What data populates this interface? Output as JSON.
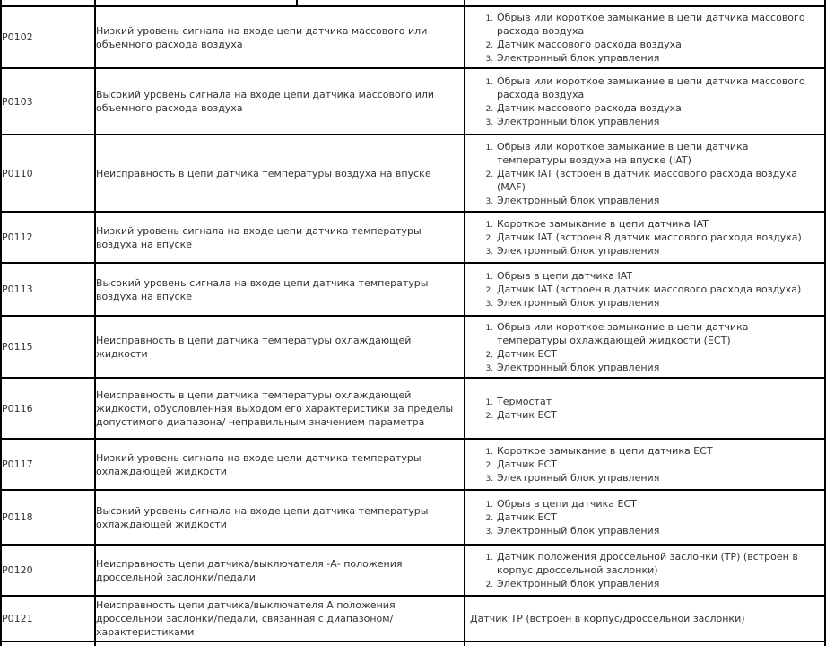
{
  "page": {
    "background": "#ffffff",
    "border_color": "#000000",
    "text_color": "#333333"
  },
  "table": {
    "column_names": [
      "dtc-code",
      "description",
      "possible-causes"
    ],
    "rows": [
      {
        "code": "P0102",
        "description": "Низкий уровень сигнала на входе цепи датчика массового или объемного расхода воздуха",
        "causes": [
          "Обрыв или короткое замыкание в цепи датчика массового расхода воздуха",
          "Датчик массового расхода воздуха",
          "Электронный блок управления"
        ]
      },
      {
        "code": "P0103",
        "description": "Высокий уровень сигнала на входе цепи датчика массового или объемного расхода воздуха",
        "causes": [
          "Обрыв или короткое замыкание в цепи датчика массового расхода воздуха",
          "Датчик массового расхода воздуха",
          "Электронный блок управления"
        ]
      },
      {
        "code": "P0110",
        "description": "Неисправность в цепи датчика температуры воздуха на впуске",
        "causes": [
          "Обрыв или короткое замыкание в цепи датчика температуры воздуха на впуске (IAT)",
          "Датчик IAT (встроен в датчик массового расхода воздуха (MAF)",
          "Электронный блок управления"
        ]
      },
      {
        "code": "P0112",
        "description": "Низкий уровень сигнала на входе цепи датчика температуры воздуха на впуске",
        "causes": [
          "Короткое замыкание в цепи датчика IAT",
          "Датчик IAT (встроен 8 датчик массового расхода воздуха)",
          "Электронный блок управления"
        ]
      },
      {
        "code": "P0113",
        "description": "Высокий уровень сигнала на входе цепи датчика температуры воздуха на впуске",
        "causes": [
          "Обрыв в цепи датчика IAT",
          "Датчик IAT (встроен в датчик массового расхода воздуха)",
          "Электронный блок управления"
        ]
      },
      {
        "code": "P0115",
        "description": "Неисправность в цепи датчика температуры охлаждающей жидкости",
        "causes": [
          "Обрыв или короткое замыкание в цепи датчика температуры охлаждающей жидкости (ECT)",
          "Датчик ECT",
          "Электронный блок управления"
        ]
      },
      {
        "code": "P0116",
        "description": "Неисправность в цепи датчика температуры охлаждающей жидкости, обусловленная выходом его характеристики за пределы допустимого диапазона/ неправильным значением параметра",
        "causes": [
          "Термостат",
          "Датчик ECT"
        ]
      },
      {
        "code": "P0117",
        "description": "Низкий уровень сигнала на входе цели датчика температуры охлаждающей жидкости",
        "causes": [
          "Короткое замыкание в цепи датчика ECT",
          "Датчик ECT",
          "Электронный блок управления"
        ]
      },
      {
        "code": "P0118",
        "description": "Высокий уровень сигнала на входе цепи датчика температуры охлаждающей жидкости",
        "causes": [
          "Обрыв в цепи датчика ECT",
          "Датчик ECT",
          "Электронный блок управления"
        ]
      },
      {
        "code": "P0120",
        "description": "Неисправность цепи датчика/выключателя -А- положения дроссельной заслонки/педали",
        "causes": [
          "Датчик положения дроссельной заслонки (TP) (встроен в корпус дроссельной заслонки)",
          "Электронный блок управления"
        ]
      },
      {
        "code": "P0121",
        "description": "Неисправность цепи датчика/выключателя А положения дроссельной заслонки/педали, связанная с диапазоном/ характеристиками",
        "causes_text": "Датчик TP (встроен в корпус/дроссельной заслонки)"
      }
    ]
  }
}
